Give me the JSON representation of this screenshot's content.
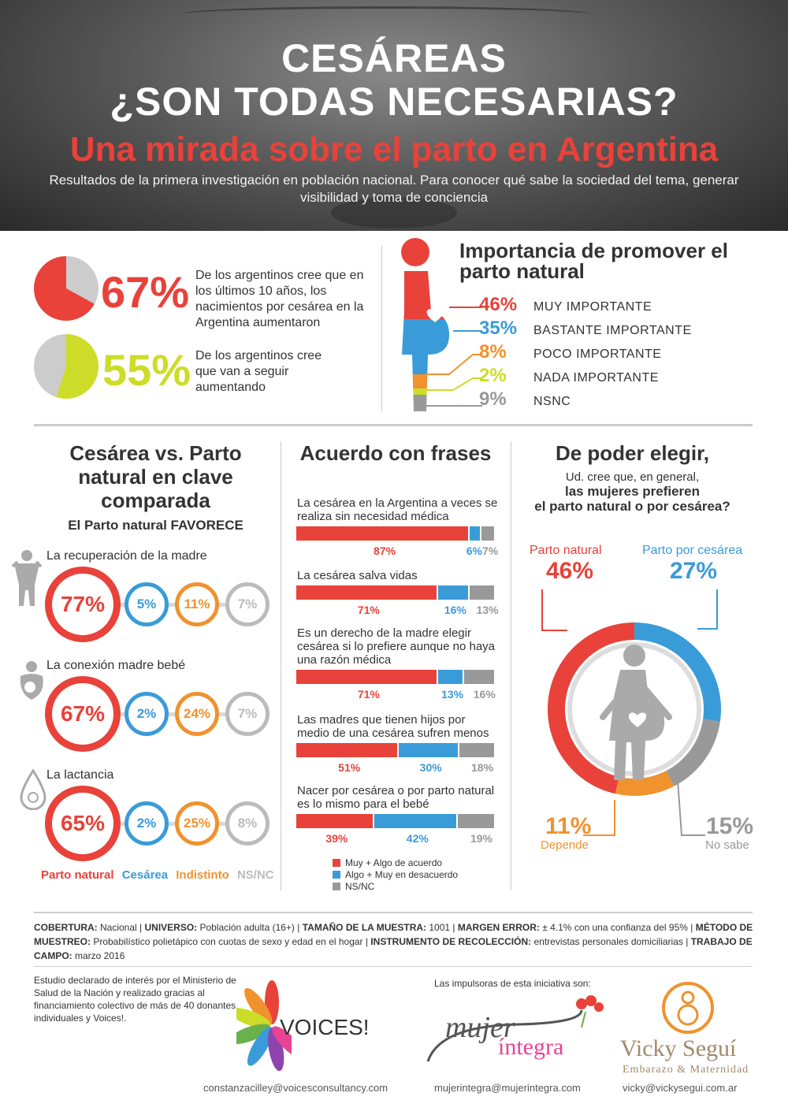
{
  "header": {
    "title_line1": "CESÁREAS",
    "title_line2": "¿SON TODAS NECESARIAS?",
    "subtitle": "Una mirada sobre el parto en Argentina",
    "intro": "Resultados de la primera investigación en población nacional. Para conocer qué sabe la sociedad del tema, generar visibilidad y toma de conciencia"
  },
  "stat1": {
    "value": 67,
    "pct": "67%",
    "text": "De los argentinos cree que en los últimos 10 años, los nacimientos por cesárea en la Argentina aumentaron"
  },
  "stat2": {
    "value": 55,
    "pct": "55%",
    "text": "De los argentinos cree que van a seguir aumentando"
  },
  "importance": {
    "title": "Importancia de promover el parto natural",
    "items": [
      {
        "pct": "46%",
        "label": "MUY IMPORTANTE",
        "color": "#e8423a"
      },
      {
        "pct": "35%",
        "label": "BASTANTE IMPORTANTE",
        "color": "#3a9bd9"
      },
      {
        "pct": "8%",
        "label": "POCO IMPORTANTE",
        "color": "#f0922e"
      },
      {
        "pct": "2%",
        "label": "NADA IMPORTANTE",
        "color": "#cddc28"
      },
      {
        "pct": "9%",
        "label": "NSNC",
        "color": "#999999"
      }
    ]
  },
  "comparison": {
    "title": "Cesárea vs. Parto natural en clave comparada",
    "subtitle": "El Parto natural FAVORECE",
    "items": [
      {
        "label": "La recuperación de la madre",
        "values": [
          "77%",
          "5%",
          "11%",
          "7%"
        ]
      },
      {
        "label": "La conexión madre bebé",
        "values": [
          "67%",
          "2%",
          "24%",
          "7%"
        ]
      },
      {
        "label": "La lactancia",
        "values": [
          "65%",
          "2%",
          "25%",
          "8%"
        ]
      }
    ],
    "legend": [
      {
        "label": "Parto natural",
        "color": "#e8423a"
      },
      {
        "label": "Cesárea",
        "color": "#3a9bd9"
      },
      {
        "label": "Indistinto",
        "color": "#f0922e"
      },
      {
        "label": "NS/NC",
        "color": "#bbbbbb"
      }
    ]
  },
  "agreement": {
    "title": "Acuerdo con frases",
    "items": [
      {
        "phrase": "La cesárea en la Argentina a veces se realiza sin necesidad médica",
        "values": [
          87,
          6,
          7
        ],
        "labels": [
          "87%",
          "6%",
          "7%"
        ]
      },
      {
        "phrase": "La cesárea salva vidas",
        "values": [
          71,
          16,
          13
        ],
        "labels": [
          "71%",
          "16%",
          "13%"
        ]
      },
      {
        "phrase": "Es un derecho de la madre elegir cesárea si lo prefiere aunque no haya una razón médica",
        "values": [
          71,
          13,
          16
        ],
        "labels": [
          "71%",
          "13%",
          "16%"
        ]
      },
      {
        "phrase": "Las madres que tienen hijos por medio de una cesárea sufren menos",
        "values": [
          51,
          30,
          18
        ],
        "labels": [
          "51%",
          "30%",
          "18%"
        ]
      },
      {
        "phrase": "Nacer por cesárea o por parto natural es lo mismo para el bebé",
        "values": [
          39,
          42,
          19
        ],
        "labels": [
          "39%",
          "42%",
          "19%"
        ]
      }
    ],
    "legend": [
      {
        "label": "Muy + Algo de acuerdo",
        "color": "#e8423a"
      },
      {
        "label": "Algo + Muy en desacuerdo",
        "color": "#3a9bd9"
      },
      {
        "label": "NS/NC",
        "color": "#999999"
      }
    ]
  },
  "choice": {
    "title": "De poder elegir,",
    "q1": "Ud. cree que, en general,",
    "q2": "las mujeres prefieren",
    "q3": "el parto natural o por cesárea?",
    "slices": [
      {
        "label": "Parto natural",
        "value": 46,
        "pct": "46%",
        "color": "#e8423a"
      },
      {
        "label": "Parto por cesárea",
        "value": 27,
        "pct": "27%",
        "color": "#3a9bd9"
      },
      {
        "label": "No sabe",
        "value": 15,
        "pct": "15%",
        "color": "#999999"
      },
      {
        "label": "Depende",
        "value": 11,
        "pct": "11%",
        "color": "#f0922e"
      }
    ]
  },
  "footer": {
    "k1": "COBERTURA:",
    "v1": " Nacional | ",
    "k2": "UNIVERSO:",
    "v2": " Población adulta (16+) | ",
    "k3": "TAMAÑO DE LA MUESTRA:",
    "v3": " 1001 | ",
    "k4": "MARGEN ERROR:",
    "v4": " ± 4.1% con una confianza del 95% | ",
    "k5": "MÉTODO DE MUESTREO:",
    "v5": " Probabilístico polietápico con cuotas de sexo y edad en el hogar | ",
    "k6": "INSTRUMENTO DE RECOLECCIÓN:",
    "v6": " entrevistas personales domiciliarias | ",
    "k7": "TRABAJO DE CAMPO:",
    "v7": " marzo 2016"
  },
  "credits": {
    "declared": "Estudio declarado de interés por el Ministerio de Salud de la Nación y realizado gracias al financiamiento colectivo de más de 40 donantes individuales y Voices!.",
    "impulsoras": "Las impulsoras de esta iniciativa son:",
    "voices_logo": "VOICES!",
    "mujer1": "mujer",
    "mujer2": "íntegra",
    "vicky1": "Vicky Seguí",
    "vicky2": "Embarazo & Maternidad",
    "email1": "constanzacilley@voicesconsultancy.com",
    "email2": "mujerintegra@mujerintegra.com",
    "email3": "vicky@vickysegui.com.ar"
  }
}
